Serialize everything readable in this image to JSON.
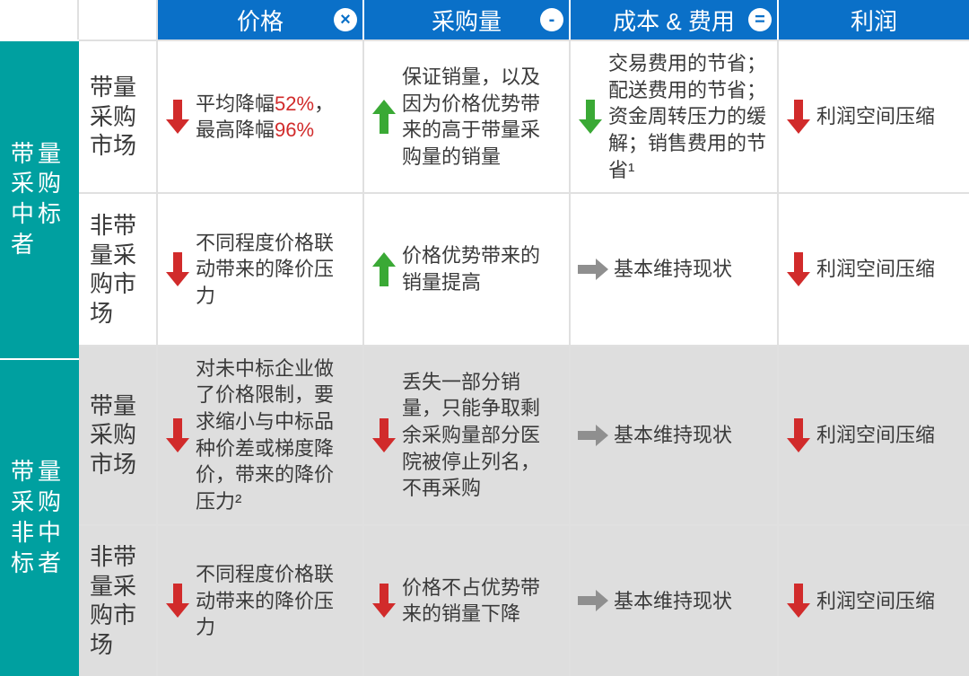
{
  "colors": {
    "header_bg": "#0a70c8",
    "group_bg": "#00a0a0",
    "shade_bg": "#dedede",
    "arrow_up": "#3aa935",
    "arrow_down": "#d12b2b",
    "arrow_flat": "#8f8f8f",
    "highlight": "#d12b2b"
  },
  "header": {
    "price": {
      "label": "价格",
      "op": "×"
    },
    "volume": {
      "label": "采购量",
      "op": "-"
    },
    "cost": {
      "label": "成本 & 费用",
      "op": "="
    },
    "profit": {
      "label": "利润"
    }
  },
  "groups": [
    {
      "label": "带量采购中标者"
    },
    {
      "label": "带量采购非中标者"
    }
  ],
  "rows": [
    {
      "group": 0,
      "shade": false,
      "market": "带量采购市场",
      "price": {
        "arrow": "down",
        "text_pre": "平均降幅",
        "hl1": "52%",
        "mid": "，最高降幅",
        "hl2": "96%"
      },
      "volume": {
        "arrow": "up",
        "text": "保证销量，以及因为价格优势带来的高于带量采购量的销量"
      },
      "cost": {
        "arrow": "down_green",
        "text": "交易费用的节省；配送费用的节省；资金周转压力的缓解；销售费用的节省¹"
      },
      "profit": {
        "arrow": "down",
        "text": "利润空间压缩"
      }
    },
    {
      "group": 0,
      "shade": false,
      "market": "非带量采购市场",
      "price": {
        "arrow": "down",
        "text": "不同程度价格联动带来的降价压力"
      },
      "volume": {
        "arrow": "up",
        "text": "价格优势带来的销量提高"
      },
      "cost": {
        "arrow": "flat",
        "text": "基本维持现状"
      },
      "profit": {
        "arrow": "down",
        "text": "利润空间压缩"
      }
    },
    {
      "group": 1,
      "shade": true,
      "market": "带量采购市场",
      "price": {
        "arrow": "down",
        "text": "对未中标企业做了价格限制，要求缩小与中标品种价差或梯度降价，带来的降价压力²"
      },
      "volume": {
        "arrow": "down",
        "text": "丢失一部分销量，只能争取剩余采购量部分医院被停止列名，不再采购"
      },
      "cost": {
        "arrow": "flat",
        "text": "基本维持现状"
      },
      "profit": {
        "arrow": "down",
        "text": "利润空间压缩"
      }
    },
    {
      "group": 1,
      "shade": true,
      "market": "非带量采购市场",
      "price": {
        "arrow": "down",
        "text": "不同程度价格联动带来的降价压力"
      },
      "volume": {
        "arrow": "down",
        "text": "价格不占优势带来的销量下降"
      },
      "cost": {
        "arrow": "flat",
        "text": "基本维持现状"
      },
      "profit": {
        "arrow": "down",
        "text": "利润空间压缩"
      }
    }
  ]
}
